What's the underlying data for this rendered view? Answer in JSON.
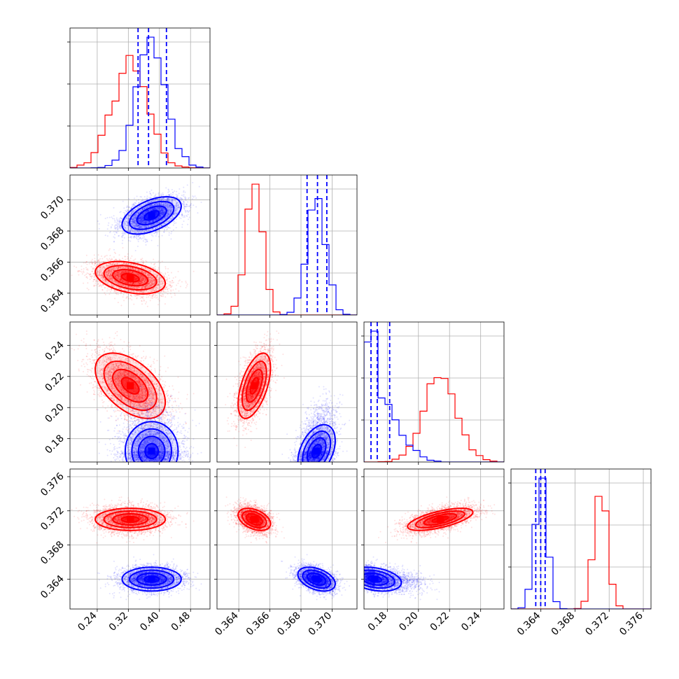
{
  "chart_data": {
    "type": "corner",
    "title": "",
    "grid": true,
    "colors": {
      "red": "#ff0000",
      "blue": "#0000ff",
      "grid": "#b0b0b0",
      "axis": "#000000"
    },
    "params": [
      {
        "range": [
          0.17,
          0.53
        ],
        "ticks": [
          0.24,
          0.32,
          0.4,
          0.48
        ],
        "tick_labels": [
          "0.24",
          "0.32",
          "0.40",
          "0.48"
        ]
      },
      {
        "range": [
          0.3626,
          0.3716
        ],
        "ticks": [
          0.364,
          0.366,
          0.368,
          0.37
        ],
        "tick_labels": [
          "0.364",
          "0.366",
          "0.368",
          "0.370"
        ]
      },
      {
        "range": [
          0.165,
          0.255
        ],
        "ticks": [
          0.18,
          0.2,
          0.22,
          0.24
        ],
        "tick_labels": [
          "0.18",
          "0.20",
          "0.22",
          "0.24"
        ]
      },
      {
        "range": [
          0.3605,
          0.3769
        ],
        "ticks": [
          0.364,
          0.368,
          0.372,
          0.376
        ],
        "tick_labels": [
          "0.364",
          "0.368",
          "0.372",
          "0.376"
        ]
      }
    ],
    "series": [
      {
        "color": "red",
        "means": [
          0.325,
          0.365,
          0.214,
          0.371
        ],
        "sigmas": [
          0.045,
          0.00052,
          0.0105,
          0.00065
        ],
        "corr": [
          [
            1,
            -0.35,
            -0.5,
            0.0
          ],
          [
            -0.35,
            1,
            0.55,
            -0.4
          ],
          [
            -0.5,
            0.55,
            1,
            0.65
          ],
          [
            0.0,
            -0.4,
            0.65,
            1
          ]
        ],
        "quantiles": []
      },
      {
        "color": "blue",
        "means": [
          0.38,
          0.369,
          0.172,
          0.364
        ],
        "sigmas": [
          0.038,
          0.0006,
          0.0085,
          0.0007
        ],
        "corr": [
          [
            1,
            0.5,
            0.0,
            0.0
          ],
          [
            0.5,
            1,
            0.4,
            -0.4
          ],
          [
            0.0,
            0.4,
            1,
            -0.3
          ],
          [
            0.0,
            -0.4,
            -0.3,
            1
          ]
        ],
        "skew": [
          0,
          0,
          1,
          0
        ],
        "quantiles": [
          [
            0.345,
            0.372,
            0.418
          ],
          [
            0.36839,
            0.36906,
            0.36966
          ],
          [
            0.1695,
            0.1735,
            0.1815
          ],
          [
            0.3634,
            0.36398,
            0.3645
          ]
        ]
      }
    ]
  }
}
